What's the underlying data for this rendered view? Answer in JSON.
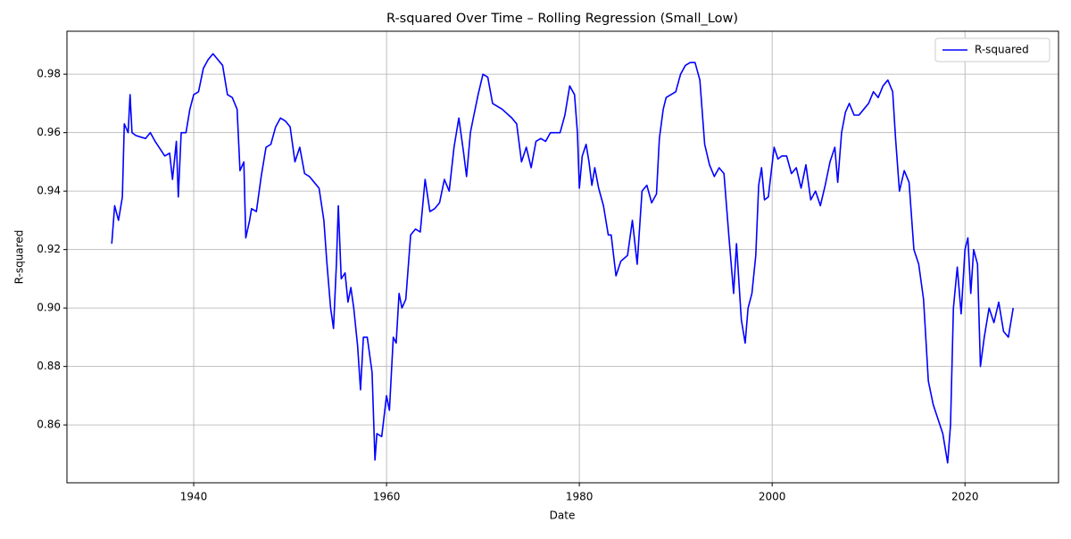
{
  "chart_data": {
    "type": "line",
    "title": "R-squared Over Time – Rolling Regression (Small_Low)",
    "x_label": "Date",
    "y_label": "R-squared",
    "x": [
      1931.5,
      1931.8,
      1932.2,
      1932.6,
      1932.8,
      1933.2,
      1933.4,
      1933.6,
      1934,
      1935,
      1935.5,
      1936,
      1937,
      1937.5,
      1937.8,
      1938.2,
      1938.4,
      1938.7,
      1939.2,
      1939.6,
      1940,
      1940.5,
      1941,
      1941.5,
      1942,
      1942.5,
      1943,
      1943.5,
      1944,
      1944.5,
      1944.8,
      1945.2,
      1945.4,
      1945.8,
      1946,
      1946.5,
      1947,
      1947.5,
      1948,
      1948.5,
      1949,
      1949.5,
      1950,
      1950.5,
      1951,
      1951.5,
      1952,
      1952.5,
      1953,
      1953.5,
      1953.8,
      1954.2,
      1954.5,
      1954.8,
      1955,
      1955.3,
      1955.7,
      1956,
      1956.3,
      1956.6,
      1957,
      1957.3,
      1957.6,
      1958,
      1958.5,
      1958.8,
      1959,
      1959.5,
      1960,
      1960.3,
      1960.7,
      1961,
      1961.3,
      1961.6,
      1962,
      1962.5,
      1963,
      1963.5,
      1964,
      1964.5,
      1965,
      1965.5,
      1966,
      1966.5,
      1967,
      1967.5,
      1968,
      1968.3,
      1968.7,
      1969,
      1969.5,
      1970,
      1970.5,
      1971,
      1972,
      1973,
      1973.5,
      1974,
      1974.5,
      1975,
      1975.5,
      1976,
      1976.5,
      1977,
      1978,
      1978.5,
      1979,
      1979.5,
      1979.8,
      1980,
      1980.3,
      1980.7,
      1981,
      1981.3,
      1981.6,
      1982,
      1982.5,
      1983,
      1983.3,
      1983.8,
      1984.3,
      1985,
      1985.5,
      1986,
      1986.5,
      1987,
      1987.5,
      1988,
      1988.3,
      1988.7,
      1989,
      1989.5,
      1990,
      1990.5,
      1991,
      1991.5,
      1992,
      1992.5,
      1993,
      1993.5,
      1994,
      1994.5,
      1995,
      1995.5,
      1996,
      1996.3,
      1996.8,
      1997.2,
      1997.5,
      1997.9,
      1998.3,
      1998.6,
      1998.9,
      1999.2,
      1999.6,
      2000.2,
      2000.6,
      2001,
      2001.5,
      2002,
      2002.5,
      2003,
      2003.5,
      2004,
      2004.5,
      2005,
      2005.5,
      2006,
      2006.5,
      2006.8,
      2007.2,
      2007.6,
      2008,
      2008.5,
      2009,
      2009.5,
      2010,
      2010.5,
      2011,
      2011.5,
      2012,
      2012.5,
      2012.8,
      2013.2,
      2013.7,
      2014.2,
      2014.7,
      2015.2,
      2015.7,
      2016.2,
      2016.7,
      2017.2,
      2017.7,
      2018.2,
      2018.5,
      2018.8,
      2019.2,
      2019.6,
      2020,
      2020.3,
      2020.6,
      2020.9,
      2021.3,
      2021.6,
      2022,
      2022.5,
      2023,
      2023.5,
      2024,
      2024.5,
      2025
    ],
    "series": [
      {
        "name": "R-squared",
        "color": "#0000ff",
        "values": [
          0.922,
          0.935,
          0.93,
          0.938,
          0.963,
          0.96,
          0.973,
          0.96,
          0.959,
          0.958,
          0.96,
          0.957,
          0.952,
          0.953,
          0.944,
          0.957,
          0.938,
          0.96,
          0.96,
          0.968,
          0.973,
          0.974,
          0.982,
          0.985,
          0.987,
          0.985,
          0.983,
          0.973,
          0.972,
          0.968,
          0.947,
          0.95,
          0.924,
          0.93,
          0.934,
          0.933,
          0.945,
          0.955,
          0.956,
          0.962,
          0.965,
          0.964,
          0.962,
          0.95,
          0.955,
          0.946,
          0.945,
          0.943,
          0.941,
          0.93,
          0.916,
          0.9,
          0.893,
          0.915,
          0.935,
          0.91,
          0.912,
          0.902,
          0.907,
          0.9,
          0.887,
          0.872,
          0.89,
          0.89,
          0.878,
          0.848,
          0.857,
          0.856,
          0.87,
          0.865,
          0.89,
          0.888,
          0.905,
          0.9,
          0.903,
          0.925,
          0.927,
          0.926,
          0.944,
          0.933,
          0.934,
          0.936,
          0.944,
          0.94,
          0.955,
          0.965,
          0.953,
          0.945,
          0.96,
          0.965,
          0.973,
          0.98,
          0.979,
          0.97,
          0.968,
          0.965,
          0.963,
          0.95,
          0.955,
          0.948,
          0.957,
          0.958,
          0.957,
          0.96,
          0.96,
          0.966,
          0.976,
          0.973,
          0.96,
          0.941,
          0.952,
          0.956,
          0.95,
          0.942,
          0.948,
          0.941,
          0.935,
          0.925,
          0.925,
          0.911,
          0.916,
          0.918,
          0.93,
          0.915,
          0.94,
          0.942,
          0.936,
          0.939,
          0.958,
          0.968,
          0.972,
          0.973,
          0.974,
          0.98,
          0.983,
          0.984,
          0.984,
          0.978,
          0.956,
          0.949,
          0.945,
          0.948,
          0.946,
          0.925,
          0.905,
          0.922,
          0.896,
          0.888,
          0.9,
          0.905,
          0.918,
          0.942,
          0.948,
          0.937,
          0.938,
          0.955,
          0.951,
          0.952,
          0.952,
          0.946,
          0.948,
          0.941,
          0.949,
          0.937,
          0.94,
          0.935,
          0.942,
          0.95,
          0.955,
          0.943,
          0.96,
          0.967,
          0.97,
          0.966,
          0.966,
          0.968,
          0.97,
          0.974,
          0.972,
          0.976,
          0.978,
          0.974,
          0.958,
          0.94,
          0.947,
          0.943,
          0.92,
          0.915,
          0.903,
          0.875,
          0.867,
          0.862,
          0.857,
          0.847,
          0.86,
          0.9,
          0.914,
          0.898,
          0.92,
          0.924,
          0.905,
          0.92,
          0.915,
          0.88,
          0.89,
          0.9,
          0.895,
          0.902,
          0.892,
          0.89,
          0.9
        ]
      }
    ],
    "xlim": [
      1926.85,
      2029.7
    ],
    "ylim": [
      0.8402,
      0.9947
    ],
    "xticks": [
      1940,
      1960,
      1980,
      2000,
      2020
    ],
    "yticks": [
      0.86,
      0.88,
      {
        "value": 0.9,
        "label": "0.90"
      },
      0.92,
      0.94,
      0.96,
      0.98
    ],
    "grid": true,
    "legend": "upper right"
  }
}
